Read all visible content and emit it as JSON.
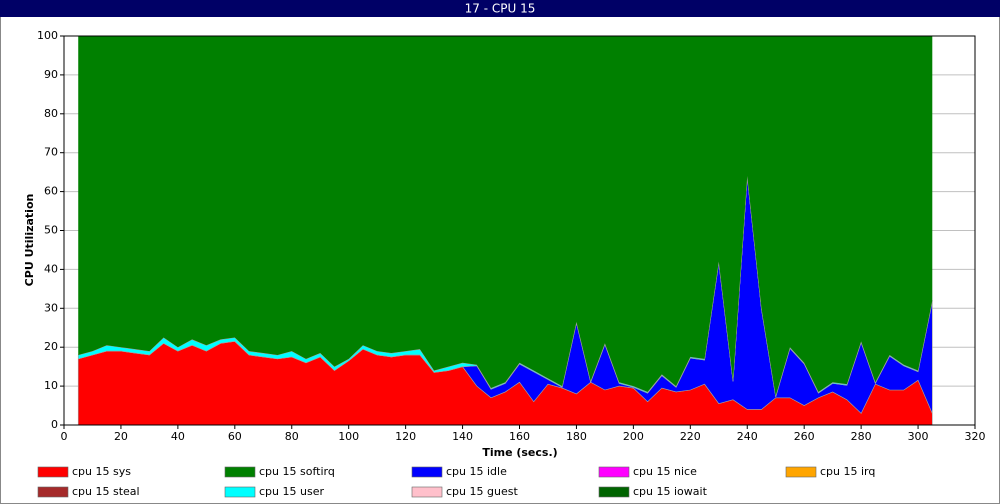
{
  "chart_data": {
    "type": "stacked_area",
    "title": "17 - CPU 15",
    "xlabel": "Time (secs.)",
    "ylabel": "CPU Utilization",
    "xlim": [
      0,
      320
    ],
    "xticks": [
      0,
      20,
      40,
      60,
      80,
      100,
      120,
      140,
      160,
      180,
      200,
      220,
      240,
      260,
      280,
      300,
      320
    ],
    "ylim": [
      0,
      100
    ],
    "yticks": [
      0,
      10,
      20,
      30,
      40,
      50,
      60,
      70,
      80,
      90,
      100
    ],
    "grid": true,
    "x": [
      5,
      10,
      15,
      20,
      25,
      30,
      35,
      40,
      45,
      50,
      55,
      60,
      65,
      70,
      75,
      80,
      85,
      90,
      95,
      100,
      105,
      110,
      115,
      120,
      125,
      130,
      135,
      140,
      145,
      150,
      155,
      160,
      165,
      170,
      175,
      180,
      185,
      190,
      195,
      200,
      205,
      210,
      215,
      220,
      225,
      230,
      235,
      240,
      245,
      250,
      255,
      260,
      265,
      270,
      275,
      280,
      285,
      290,
      295,
      300,
      305
    ],
    "series": [
      {
        "name": "cpu 15 sys",
        "color": "#ff0000",
        "values": [
          17,
          18,
          19,
          19,
          18.5,
          18,
          21,
          19,
          20.5,
          19,
          21,
          21.5,
          18,
          17.5,
          17,
          17.5,
          16,
          17.5,
          14,
          16.5,
          19.5,
          18,
          17.5,
          18,
          18,
          13.5,
          14,
          15,
          10,
          7,
          8.5,
          11,
          6,
          10.5,
          9.5,
          8,
          11,
          9,
          10,
          9.5,
          6,
          9.5,
          8.5,
          9,
          10.5,
          5.5,
          6.5,
          4,
          4,
          7,
          7,
          5,
          7,
          8.5,
          6.5,
          3,
          10.5,
          9,
          9,
          11.5,
          3
        ]
      },
      {
        "name": "cpu 15 softirq",
        "color": "#008000",
        "values": [
          82,
          81,
          79.5,
          80,
          80.5,
          81,
          77.5,
          80,
          78,
          79.5,
          78,
          77.5,
          81,
          81.5,
          82,
          81,
          83,
          81.5,
          85,
          83,
          79.5,
          81,
          81.5,
          81,
          80.5,
          86,
          85,
          84,
          84.5,
          90.5,
          89,
          84,
          86,
          88,
          90,
          73.5,
          88.7,
          79,
          89,
          90,
          91.5,
          87,
          90,
          82.5,
          83,
          58,
          88.5,
          36,
          70,
          92.5,
          80,
          84,
          91.5,
          89,
          89.5,
          78.5,
          89,
          82,
          84.5,
          86,
          68
        ]
      },
      {
        "name": "cpu 15 idle",
        "color": "#0000ff",
        "values": [
          0,
          0,
          0,
          0,
          0,
          0,
          0,
          0,
          0,
          0,
          0,
          0,
          0,
          0,
          0,
          0,
          0,
          0,
          0,
          0,
          0,
          0,
          0,
          0,
          0,
          0,
          0,
          0,
          5.2,
          2.2,
          2.2,
          4.7,
          7.7,
          1.2,
          0.2,
          18.2,
          0,
          11.7,
          0.7,
          0.2,
          2.2,
          3.2,
          1.2,
          8.2,
          6.2,
          36.2,
          4.7,
          59.7,
          25.7,
          0.2,
          12.7,
          10.7,
          1.2,
          2.2,
          3.7,
          18.2,
          0.2,
          8.7,
          6.2,
          2.2,
          28.7
        ]
      },
      {
        "name": "cpu 15 nice",
        "color": "#ff00ff",
        "values": [
          0,
          0,
          0,
          0,
          0,
          0,
          0,
          0,
          0,
          0,
          0,
          0,
          0,
          0,
          0,
          0,
          0,
          0,
          0,
          0,
          0,
          0,
          0,
          0,
          0,
          0,
          0,
          0,
          0,
          0,
          0,
          0,
          0,
          0,
          0,
          0,
          0,
          0,
          0,
          0,
          0,
          0,
          0,
          0,
          0,
          0,
          0,
          0,
          0,
          0,
          0,
          0,
          0,
          0,
          0,
          0,
          0,
          0,
          0,
          0,
          0
        ]
      },
      {
        "name": "cpu 15 irq",
        "color": "#ffa500",
        "values": [
          0,
          0,
          0,
          0,
          0,
          0,
          0,
          0,
          0,
          0,
          0,
          0,
          0,
          0,
          0,
          0,
          0,
          0,
          0,
          0,
          0,
          0,
          0,
          0,
          0,
          0,
          0,
          0,
          0,
          0,
          0,
          0,
          0,
          0,
          0,
          0,
          0,
          0,
          0,
          0,
          0,
          0,
          0,
          0,
          0,
          0,
          0,
          0,
          0,
          0,
          0,
          0,
          0,
          0,
          0,
          0,
          0,
          0,
          0,
          0,
          0
        ]
      },
      {
        "name": "cpu 15 steal",
        "color": "#a52a2a",
        "values": [
          0,
          0,
          0,
          0,
          0,
          0,
          0,
          0,
          0,
          0,
          0,
          0,
          0,
          0,
          0,
          0,
          0,
          0,
          0,
          0,
          0,
          0,
          0,
          0,
          0,
          0,
          0,
          0,
          0,
          0,
          0,
          0,
          0,
          0,
          0,
          0,
          0,
          0,
          0,
          0,
          0,
          0,
          0,
          0,
          0,
          0,
          0,
          0,
          0,
          0,
          0,
          0,
          0,
          0,
          0,
          0,
          0,
          0,
          0,
          0,
          0
        ]
      },
      {
        "name": "cpu 15 user",
        "color": "#00ffff",
        "values": [
          1,
          1,
          1.5,
          1,
          1,
          1,
          1.5,
          1,
          1.5,
          1.5,
          1,
          1,
          1,
          1,
          1,
          1.5,
          1,
          1,
          1,
          0.5,
          1,
          1,
          1,
          1,
          1.5,
          0.5,
          1,
          1,
          0.3,
          0.3,
          0.3,
          0.3,
          0.3,
          0.3,
          0.3,
          0.3,
          0.3,
          0.3,
          0.3,
          0.3,
          0.3,
          0.3,
          0.3,
          0.3,
          0.3,
          0.3,
          0.3,
          0.3,
          0.3,
          0.3,
          0.3,
          0.3,
          0.3,
          0.3,
          0.3,
          0.3,
          0.3,
          0.3,
          0.3,
          0.3,
          0.3
        ]
      },
      {
        "name": "cpu 15 guest",
        "color": "#ffc0cb",
        "values": [
          0,
          0,
          0,
          0,
          0,
          0,
          0,
          0,
          0,
          0,
          0,
          0,
          0,
          0,
          0,
          0,
          0,
          0,
          0,
          0,
          0,
          0,
          0,
          0,
          0,
          0,
          0,
          0,
          0,
          0,
          0,
          0,
          0,
          0,
          0,
          0,
          0,
          0,
          0,
          0,
          0,
          0,
          0,
          0,
          0,
          0,
          0,
          0,
          0,
          0,
          0,
          0,
          0,
          0,
          0,
          0,
          0,
          0,
          0,
          0,
          0
        ]
      },
      {
        "name": "cpu 15 iowait",
        "color": "#006400",
        "values": [
          0,
          0,
          0,
          0,
          0,
          0,
          0,
          0,
          0,
          0,
          0,
          0,
          0,
          0,
          0,
          0,
          0,
          0,
          0,
          0,
          0,
          0,
          0,
          0,
          0,
          0,
          0,
          0,
          0,
          0,
          0,
          0,
          0,
          0,
          0,
          0,
          0,
          0,
          0,
          0,
          0,
          0,
          0,
          0,
          0,
          0,
          0,
          0,
          0,
          0,
          0,
          0,
          0,
          0,
          0,
          0,
          0,
          0,
          0,
          0,
          0
        ]
      }
    ]
  }
}
